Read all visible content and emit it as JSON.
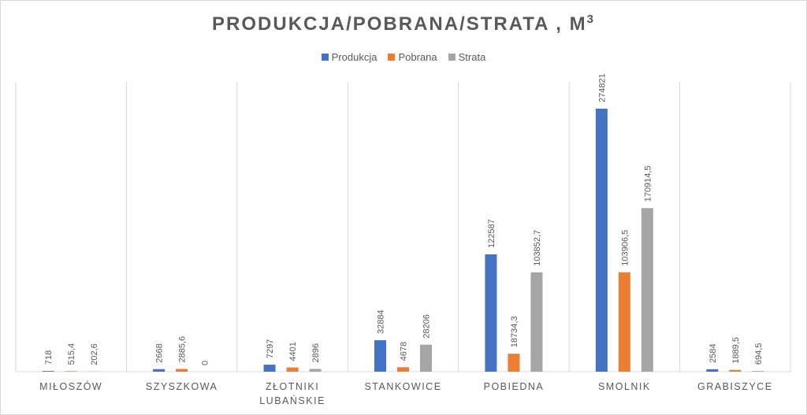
{
  "chart_data": {
    "type": "bar",
    "title": "PRODUKCJA/POBRANA/STRATA , M",
    "title_superscript": "3",
    "categories": [
      "MIŁOSZÓW",
      "SZYSZKOWA",
      "ZŁOTNIKI LUBAŃSKIE",
      "STANKOWICE",
      "POBIEDNA",
      "SMOLNIK",
      "GRABISZYCE"
    ],
    "category_lines": [
      [
        "MIŁOSZÓW"
      ],
      [
        "SZYSZKOWA"
      ],
      [
        "ZŁOTNIKI",
        "LUBAŃSKIE"
      ],
      [
        "STANKOWICE"
      ],
      [
        "POBIEDNA"
      ],
      [
        "SMOLNIK"
      ],
      [
        "GRABISZYCE"
      ]
    ],
    "series": [
      {
        "name": "Produkcja",
        "color": "#4472c4",
        "values": [
          718,
          2668,
          7297,
          32884,
          122587,
          274821,
          2584
        ],
        "labels": [
          "718",
          "2668",
          "7297",
          "32884",
          "122587",
          "274821",
          "2584"
        ]
      },
      {
        "name": "Pobrana",
        "color": "#ed7d31",
        "values": [
          515.4,
          2885.6,
          4401,
          4678,
          18734.3,
          103906.5,
          1889.5
        ],
        "labels": [
          "515,4",
          "2885,6",
          "4401",
          "4678",
          "18734,3",
          "103906,5",
          "1889,5"
        ]
      },
      {
        "name": "Strata",
        "color": "#a5a5a5",
        "values": [
          202.6,
          0,
          2896,
          28206,
          103852.7,
          170914.5,
          694.5
        ],
        "labels": [
          "202,6",
          "0",
          "2896",
          "28206",
          "103852,7",
          "170914,5",
          "694,5"
        ]
      }
    ],
    "ylim": [
      0,
      300000
    ],
    "legend_position": "top",
    "grid": "vertical category separators"
  }
}
